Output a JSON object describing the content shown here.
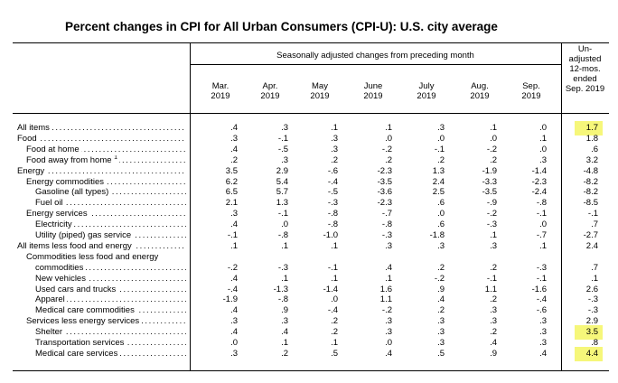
{
  "title": "Percent changes in CPI for All Urban Consumers (CPI-U): U.S. city average",
  "header": {
    "seasonal": "Seasonally adjusted changes from preceding month",
    "months": [
      {
        "m": "Mar.",
        "y": "2019"
      },
      {
        "m": "Apr.",
        "y": "2019"
      },
      {
        "m": "May",
        "y": "2019"
      },
      {
        "m": "June",
        "y": "2019"
      },
      {
        "m": "July",
        "y": "2019"
      },
      {
        "m": "Aug.",
        "y": "2019"
      },
      {
        "m": "Sep.",
        "y": "2019"
      }
    ],
    "unadjusted": [
      "Un-",
      "adjusted",
      "12-mos.",
      "ended",
      "Sep. 2019"
    ]
  },
  "highlight_color": "#f6f77a",
  "rows": [
    {
      "label": "All items",
      "sup": "",
      "indent": 0,
      "values": [
        ".4",
        ".3",
        ".1",
        ".1",
        ".3",
        ".1",
        ".0",
        "1.7"
      ],
      "highlight": true
    },
    {
      "label": "Food",
      "sup": "",
      "indent": 0,
      "values": [
        ".3",
        "-.1",
        ".3",
        ".0",
        ".0",
        ".0",
        ".1",
        "1.8"
      ],
      "highlight": false
    },
    {
      "label": "Food at home",
      "sup": "",
      "indent": 1,
      "values": [
        ".4",
        "-.5",
        ".3",
        "-.2",
        "-.1",
        "-.2",
        ".0",
        ".6"
      ],
      "highlight": false
    },
    {
      "label": "Food away from home",
      "sup": "1",
      "indent": 1,
      "values": [
        ".2",
        ".3",
        ".2",
        ".2",
        ".2",
        ".2",
        ".3",
        "3.2"
      ],
      "highlight": false
    },
    {
      "label": "Energy",
      "sup": "",
      "indent": 0,
      "values": [
        "3.5",
        "2.9",
        "-.6",
        "-2.3",
        "1.3",
        "-1.9",
        "-1.4",
        "-4.8"
      ],
      "highlight": false
    },
    {
      "label": "Energy commodities",
      "sup": "",
      "indent": 1,
      "values": [
        "6.2",
        "5.4",
        "-.4",
        "-3.5",
        "2.4",
        "-3.3",
        "-2.3",
        "-8.2"
      ],
      "highlight": false
    },
    {
      "label": "Gasoline (all types)",
      "sup": "",
      "indent": 2,
      "values": [
        "6.5",
        "5.7",
        "-.5",
        "-3.6",
        "2.5",
        "-3.5",
        "-2.4",
        "-8.2"
      ],
      "highlight": false
    },
    {
      "label": "Fuel oil",
      "sup": "",
      "indent": 2,
      "values": [
        "2.1",
        "1.3",
        "-.3",
        "-2.3",
        ".6",
        "-.9",
        "-.8",
        "-8.5"
      ],
      "highlight": false
    },
    {
      "label": "Energy services",
      "sup": "",
      "indent": 1,
      "values": [
        ".3",
        "-.1",
        "-.8",
        "-.7",
        ".0",
        "-.2",
        "-.1",
        "-.1"
      ],
      "highlight": false
    },
    {
      "label": "Electricity",
      "sup": "",
      "indent": 2,
      "values": [
        ".4",
        ".0",
        "-.8",
        "-.8",
        ".6",
        "-.3",
        ".0",
        ".7"
      ],
      "highlight": false
    },
    {
      "label": "Utility (piped) gas service",
      "sup": "",
      "indent": 2,
      "values": [
        "-.1",
        "-.8",
        "-1.0",
        "-.3",
        "-1.8",
        ".1",
        "-.7",
        "-2.7"
      ],
      "highlight": false
    },
    {
      "label": "All items less food and energy",
      "sup": "",
      "indent": 0,
      "values": [
        ".1",
        ".1",
        ".1",
        ".3",
        ".3",
        ".3",
        ".1",
        "2.4"
      ],
      "highlight": false
    },
    {
      "label": "Commodities less food and energy",
      "sup": "",
      "indent": 1,
      "values": [
        "",
        "",
        "",
        "",
        "",
        "",
        "",
        ""
      ],
      "highlight": false
    },
    {
      "label": "commodities",
      "sup": "",
      "indent": 2,
      "values": [
        "-.2",
        "-.3",
        "-.1",
        ".4",
        ".2",
        ".2",
        "-.3",
        ".7"
      ],
      "highlight": false
    },
    {
      "label": "New vehicles",
      "sup": "",
      "indent": 2,
      "values": [
        ".4",
        ".1",
        ".1",
        ".1",
        "-.2",
        "-.1",
        "-.1",
        ".1"
      ],
      "highlight": false
    },
    {
      "label": "Used cars and trucks",
      "sup": "",
      "indent": 2,
      "values": [
        "-.4",
        "-1.3",
        "-1.4",
        "1.6",
        ".9",
        "1.1",
        "-1.6",
        "2.6"
      ],
      "highlight": false
    },
    {
      "label": "Apparel",
      "sup": "",
      "indent": 2,
      "values": [
        "-1.9",
        "-.8",
        ".0",
        "1.1",
        ".4",
        ".2",
        "-.4",
        "-.3"
      ],
      "highlight": false
    },
    {
      "label": "Medical care commodities",
      "sup": "",
      "indent": 2,
      "values": [
        ".4",
        ".9",
        "-.4",
        "-.2",
        ".2",
        ".3",
        "-.6",
        "-.3"
      ],
      "highlight": false
    },
    {
      "label": "Services less energy services",
      "sup": "",
      "indent": 1,
      "values": [
        ".3",
        ".3",
        ".2",
        ".3",
        ".3",
        ".3",
        ".3",
        "2.9"
      ],
      "highlight": false
    },
    {
      "label": "Shelter",
      "sup": "",
      "indent": 2,
      "values": [
        ".4",
        ".4",
        ".2",
        ".3",
        ".3",
        ".2",
        ".3",
        "3.5"
      ],
      "highlight": true
    },
    {
      "label": "Transportation services",
      "sup": "",
      "indent": 2,
      "values": [
        ".0",
        ".1",
        ".1",
        ".0",
        ".3",
        ".4",
        ".3",
        ".8"
      ],
      "highlight": false
    },
    {
      "label": "Medical care services",
      "sup": "",
      "indent": 2,
      "values": [
        ".3",
        ".2",
        ".5",
        ".4",
        ".5",
        ".9",
        ".4",
        "4.4"
      ],
      "highlight": true
    }
  ]
}
